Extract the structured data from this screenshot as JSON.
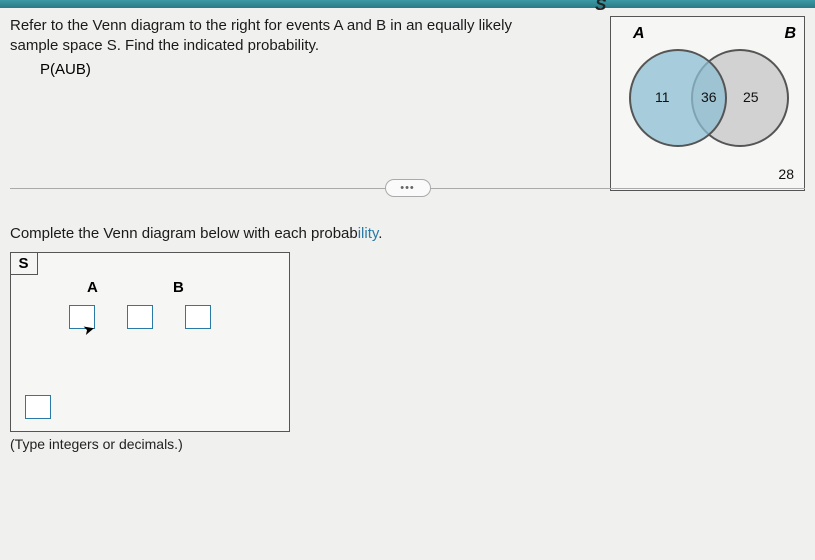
{
  "problem": {
    "text_line1": "Refer to the Venn diagram to the right for events A and B in an equally likely",
    "text_line2": "sample space S. Find the indicated probability.",
    "sub": "P(AUB)"
  },
  "refVenn": {
    "S": "S",
    "A": "A",
    "B": "B",
    "onlyA": "11",
    "intersect": "36",
    "onlyB": "25",
    "outside": "28",
    "circleA_color": "rgba(140,190,210,0.75)",
    "circleB_color": "rgba(180,180,180,0.55)",
    "border_color": "#555"
  },
  "divider": {
    "ellipsis": "•••"
  },
  "step": {
    "prompt_prefix": "Complete the Venn diagram below with each probab",
    "prompt_hl": "ility",
    "prompt_suffix": "."
  },
  "answerVenn": {
    "S": "S",
    "A": "A",
    "B": "B",
    "hint": "(Type integers or decimals.)"
  },
  "colors": {
    "topbar": "#3a9aa5",
    "accent": "#2a7aa5",
    "background": "#f0f0ee"
  }
}
